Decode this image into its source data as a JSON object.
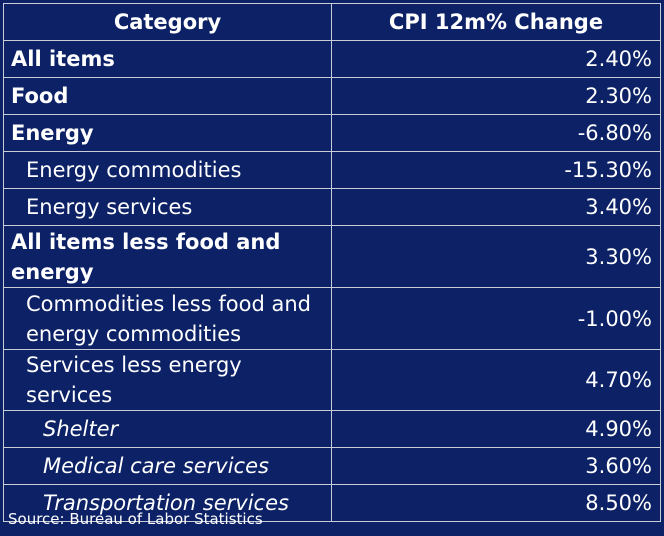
{
  "chart_data": {
    "type": "table",
    "columns": [
      "Category",
      "CPI 12m% Change"
    ],
    "rows": [
      {
        "category": "All items",
        "value": "2.40%",
        "level": 0
      },
      {
        "category": "Food",
        "value": "2.30%",
        "level": 0
      },
      {
        "category": "Energy",
        "value": "-6.80%",
        "level": 0
      },
      {
        "category": "Energy commodities",
        "value": "-15.30%",
        "level": 1
      },
      {
        "category": "Energy services",
        "value": "3.40%",
        "level": 1
      },
      {
        "category": "All items less food and energy",
        "value": "3.30%",
        "level": 0
      },
      {
        "category": "Commodities less food and energy commodities",
        "value": "-1.00%",
        "level": 1
      },
      {
        "category": "Services less energy services",
        "value": "4.70%",
        "level": 1
      },
      {
        "category": "Shelter",
        "value": "4.90%",
        "level": 2
      },
      {
        "category": "Medical care services",
        "value": "3.60%",
        "level": 2
      },
      {
        "category": "Transportation services",
        "value": "8.50%",
        "level": 2
      }
    ]
  },
  "source": "Source: Bureau of Labor Statistics",
  "colors": {
    "background": "#0c2166",
    "text": "#ffffff",
    "border": "#c8cdd8"
  }
}
